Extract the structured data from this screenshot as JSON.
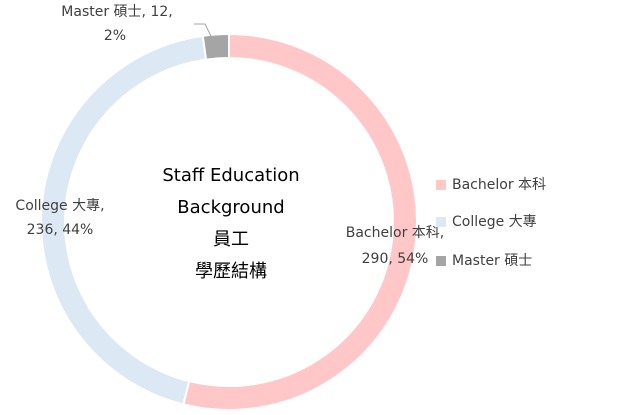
{
  "chart_data": {
    "type": "donut",
    "title_lines": [
      "Staff Education",
      "Background",
      "員工",
      "學歷結構"
    ],
    "categories": [
      "Bachelor 本科",
      "College 大專",
      "Master 碩士"
    ],
    "values": [
      290,
      236,
      12
    ],
    "percents": [
      54,
      44,
      2
    ],
    "data_labels": [
      [
        "Bachelor 本科,",
        "290, 54%"
      ],
      [
        "College 大專,",
        "236, 44%"
      ],
      [
        "Master 碩士, 12,",
        "2%"
      ]
    ],
    "colors": [
      "#ffc7c7",
      "#dde8f5",
      "#a5a5a5"
    ],
    "legend": "right"
  }
}
